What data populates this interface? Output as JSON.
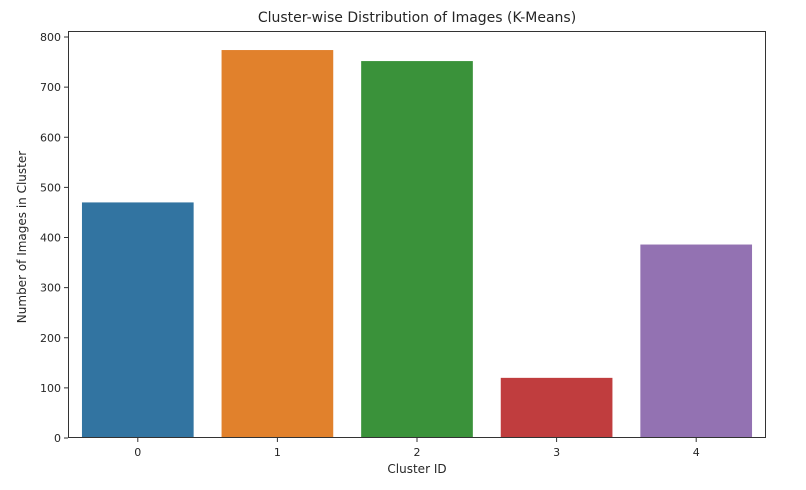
{
  "chart_data": {
    "type": "bar",
    "title": "Cluster-wise Distribution of Images (K-Means)",
    "xlabel": "Cluster ID",
    "ylabel": "Number of Images in Cluster",
    "categories": [
      "0",
      "1",
      "2",
      "3",
      "4"
    ],
    "values": [
      470,
      774,
      752,
      120,
      386
    ],
    "colors": [
      "#3274a1",
      "#e1812c",
      "#3a923a",
      "#c03d3e",
      "#9372b2"
    ],
    "ylim": [
      0,
      812
    ],
    "yticks": [
      0,
      100,
      200,
      300,
      400,
      500,
      600,
      700,
      800
    ],
    "grid": false,
    "legend": "none"
  }
}
